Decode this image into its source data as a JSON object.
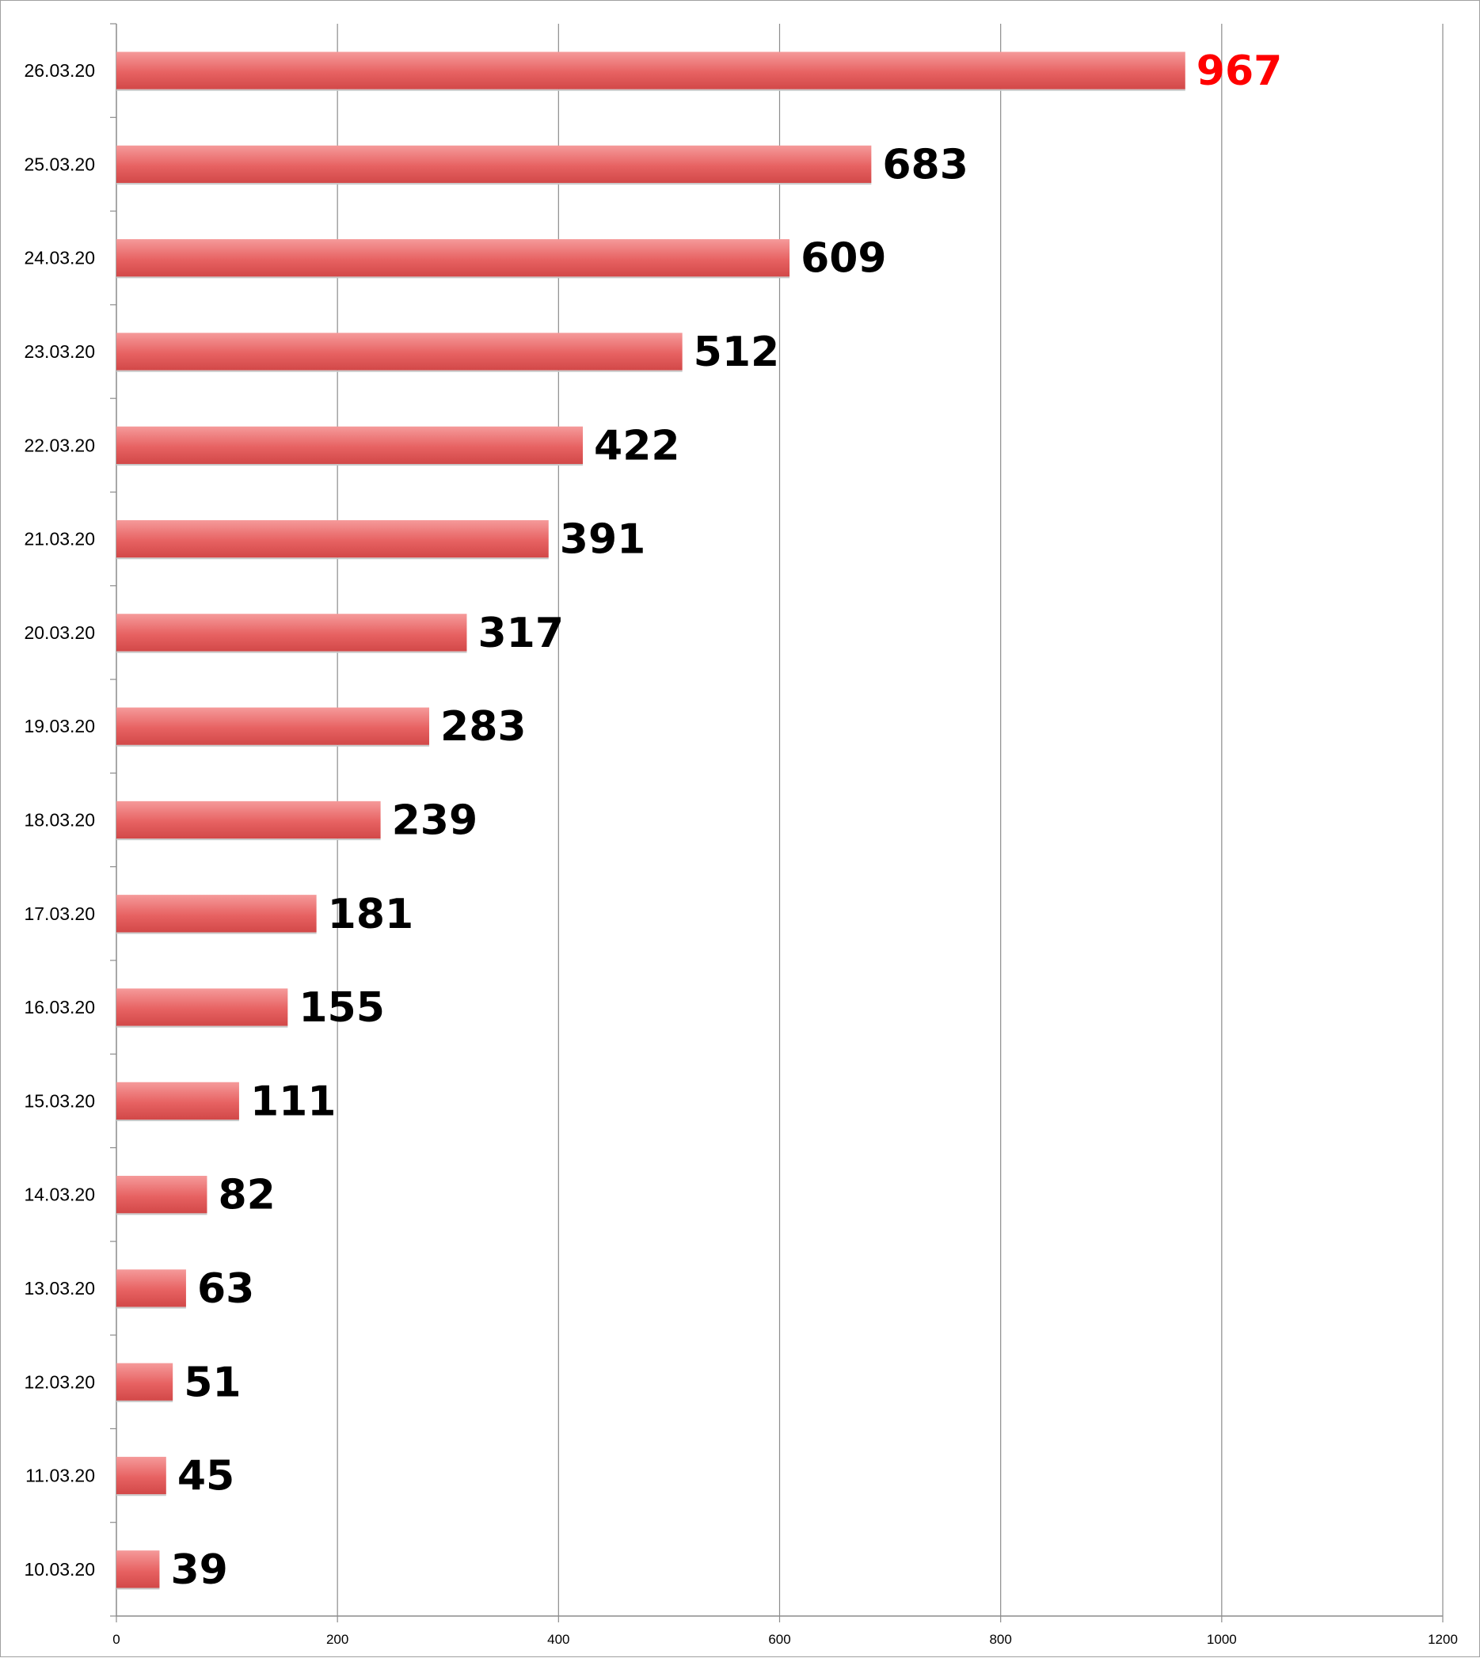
{
  "chart_data": {
    "type": "bar",
    "orientation": "horizontal",
    "categories": [
      "10.03.20",
      "11.03.20",
      "12.03.20",
      "13.03.20",
      "14.03.20",
      "15.03.20",
      "16.03.20",
      "17.03.20",
      "18.03.20",
      "19.03.20",
      "20.03.20",
      "21.03.20",
      "22.03.20",
      "23.03.20",
      "24.03.20",
      "25.03.20",
      "26.03.20"
    ],
    "values": [
      39,
      45,
      51,
      63,
      82,
      111,
      155,
      181,
      239,
      283,
      317,
      391,
      422,
      512,
      609,
      683,
      967
    ],
    "title": "",
    "xlabel": "",
    "ylabel": "",
    "xlim": [
      0,
      1200
    ],
    "xticks": [
      "0",
      "200",
      "400",
      "600",
      "800",
      "1000",
      "1200"
    ],
    "grid": "vertical",
    "legend": "none",
    "colors": {
      "bar_top": "#f59a9a",
      "bar_mid": "#e76262",
      "bar_bottom": "#d24848",
      "label_default": "#000000",
      "label_highlight": "#ff0000",
      "grid": "#8c8c8c"
    },
    "highlight_category": "26.03.20"
  }
}
